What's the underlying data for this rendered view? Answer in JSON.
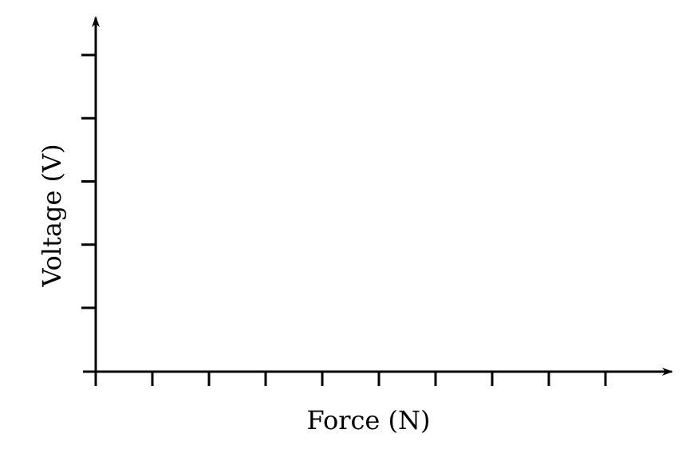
{
  "chart_data": {
    "type": "line",
    "xlabel": "Force (N)",
    "ylabel": "Voltage (V)",
    "x_tick_count": 10,
    "y_tick_count": 5,
    "grid": false,
    "series": [],
    "axis_color": "#000000"
  }
}
